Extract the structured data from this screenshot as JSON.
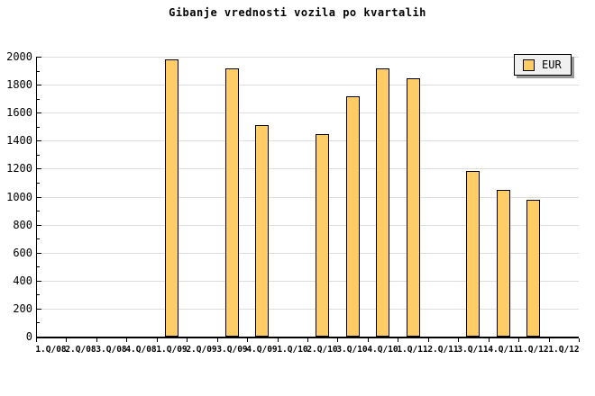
{
  "title": "Gibanje vrednosti vozila po kvartalih",
  "legend": {
    "label": "EUR"
  },
  "colors": {
    "background": "#FFFFFF",
    "bar_fill": "#FFCC66",
    "bar_border": "#000000",
    "grid": "#DDDDDD",
    "axis": "#000000",
    "legend_bg": "#F0F0F0",
    "legend_shadow": "#999999"
  },
  "chart_data": {
    "type": "bar",
    "title": "Gibanje vrednosti vozila po kvartalih",
    "categories": [
      "1.Q/08",
      "2.Q/08",
      "3.Q/08",
      "4.Q/08",
      "1.Q/09",
      "2.Q/09",
      "3.Q/09",
      "4.Q/09",
      "1.Q/10",
      "2.Q/10",
      "3.Q/10",
      "4.Q/10",
      "1.Q/11",
      "2.Q/11",
      "3.Q/11",
      "4.Q/11",
      "1.Q/12",
      "1.Q/12"
    ],
    "series": [
      {
        "name": "EUR",
        "values": [
          null,
          null,
          null,
          null,
          1980,
          null,
          1915,
          1510,
          null,
          1445,
          1720,
          1915,
          1845,
          null,
          1185,
          1050,
          975,
          null
        ]
      }
    ],
    "note_on_values": null,
    "xlabel": "",
    "ylabel": "",
    "ylim": [
      0,
      2000
    ],
    "ytick_major_step": 200,
    "ytick_minor_step": 100,
    "grid": "horizontal-major",
    "legend_position": "top-right"
  }
}
